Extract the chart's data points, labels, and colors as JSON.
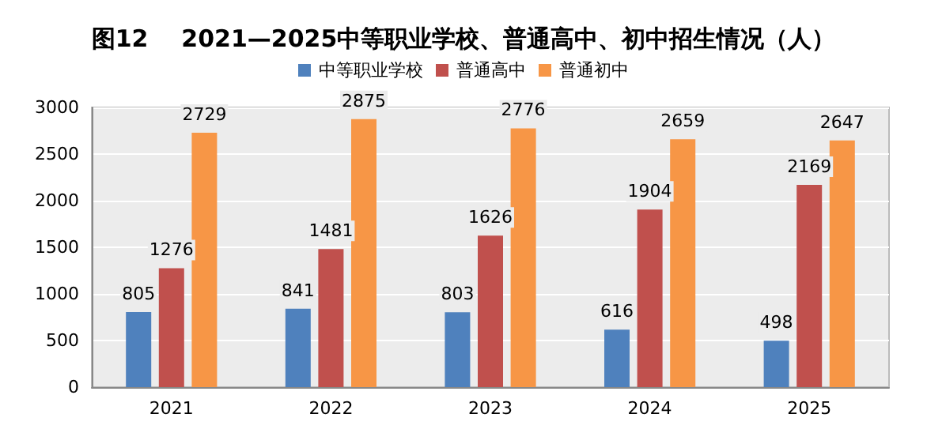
{
  "chart_data": {
    "type": "bar",
    "title": "图12    2021—2025中等职业学校、普通高中、初中招生情况（人）",
    "categories": [
      "2021",
      "2022",
      "2023",
      "2024",
      "2025"
    ],
    "series": [
      {
        "name": "中等职业学校",
        "color": "#4f81bd",
        "values": [
          805,
          841,
          803,
          616,
          498
        ]
      },
      {
        "name": "普通高中",
        "color": "#c0504d",
        "values": [
          1276,
          1481,
          1626,
          1904,
          2169
        ]
      },
      {
        "name": "普通初中",
        "color": "#f79646",
        "values": [
          2729,
          2875,
          2776,
          2659,
          2647
        ]
      }
    ],
    "ylim": [
      0,
      3000
    ],
    "yticks": [
      0,
      500,
      1000,
      1500,
      2000,
      2500,
      3000
    ],
    "grid": "y",
    "legend": "top",
    "data_labels": true
  }
}
